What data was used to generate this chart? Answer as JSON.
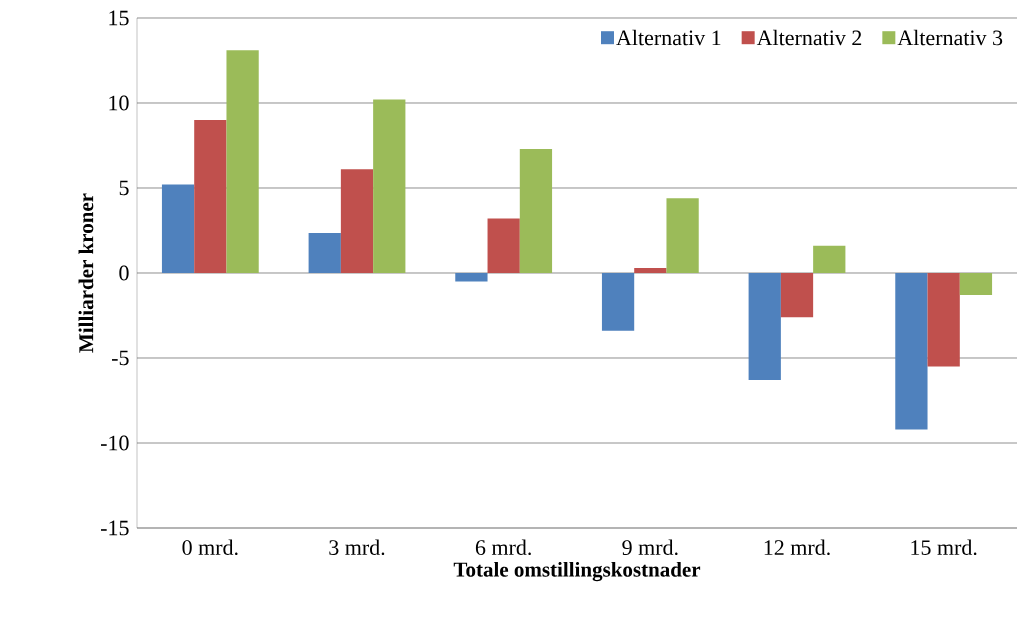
{
  "chart_data": {
    "type": "bar",
    "xlabel": "Totale omstillingskostnader",
    "ylabel": "Milliarder kroner",
    "categories": [
      "0 mrd.",
      "3 mrd.",
      "6 mrd.",
      "9 mrd.",
      "12 mrd.",
      "15 mrd."
    ],
    "series": [
      {
        "name": "Alternativ 1",
        "color": "#4f81bd",
        "values": [
          5.2,
          2.35,
          -0.5,
          -3.4,
          -6.3,
          -9.2
        ]
      },
      {
        "name": "Alternativ 2",
        "color": "#c0504d",
        "values": [
          9.0,
          6.1,
          3.2,
          0.3,
          -2.6,
          -5.5
        ]
      },
      {
        "name": "Alternativ 3",
        "color": "#9bbb59",
        "values": [
          13.1,
          10.2,
          7.3,
          4.4,
          1.6,
          -1.3
        ]
      }
    ],
    "ylim": [
      -15,
      15
    ],
    "yticks": [
      -15,
      -10,
      -5,
      0,
      5,
      10,
      15
    ],
    "grid": "y",
    "legend": "top right"
  }
}
